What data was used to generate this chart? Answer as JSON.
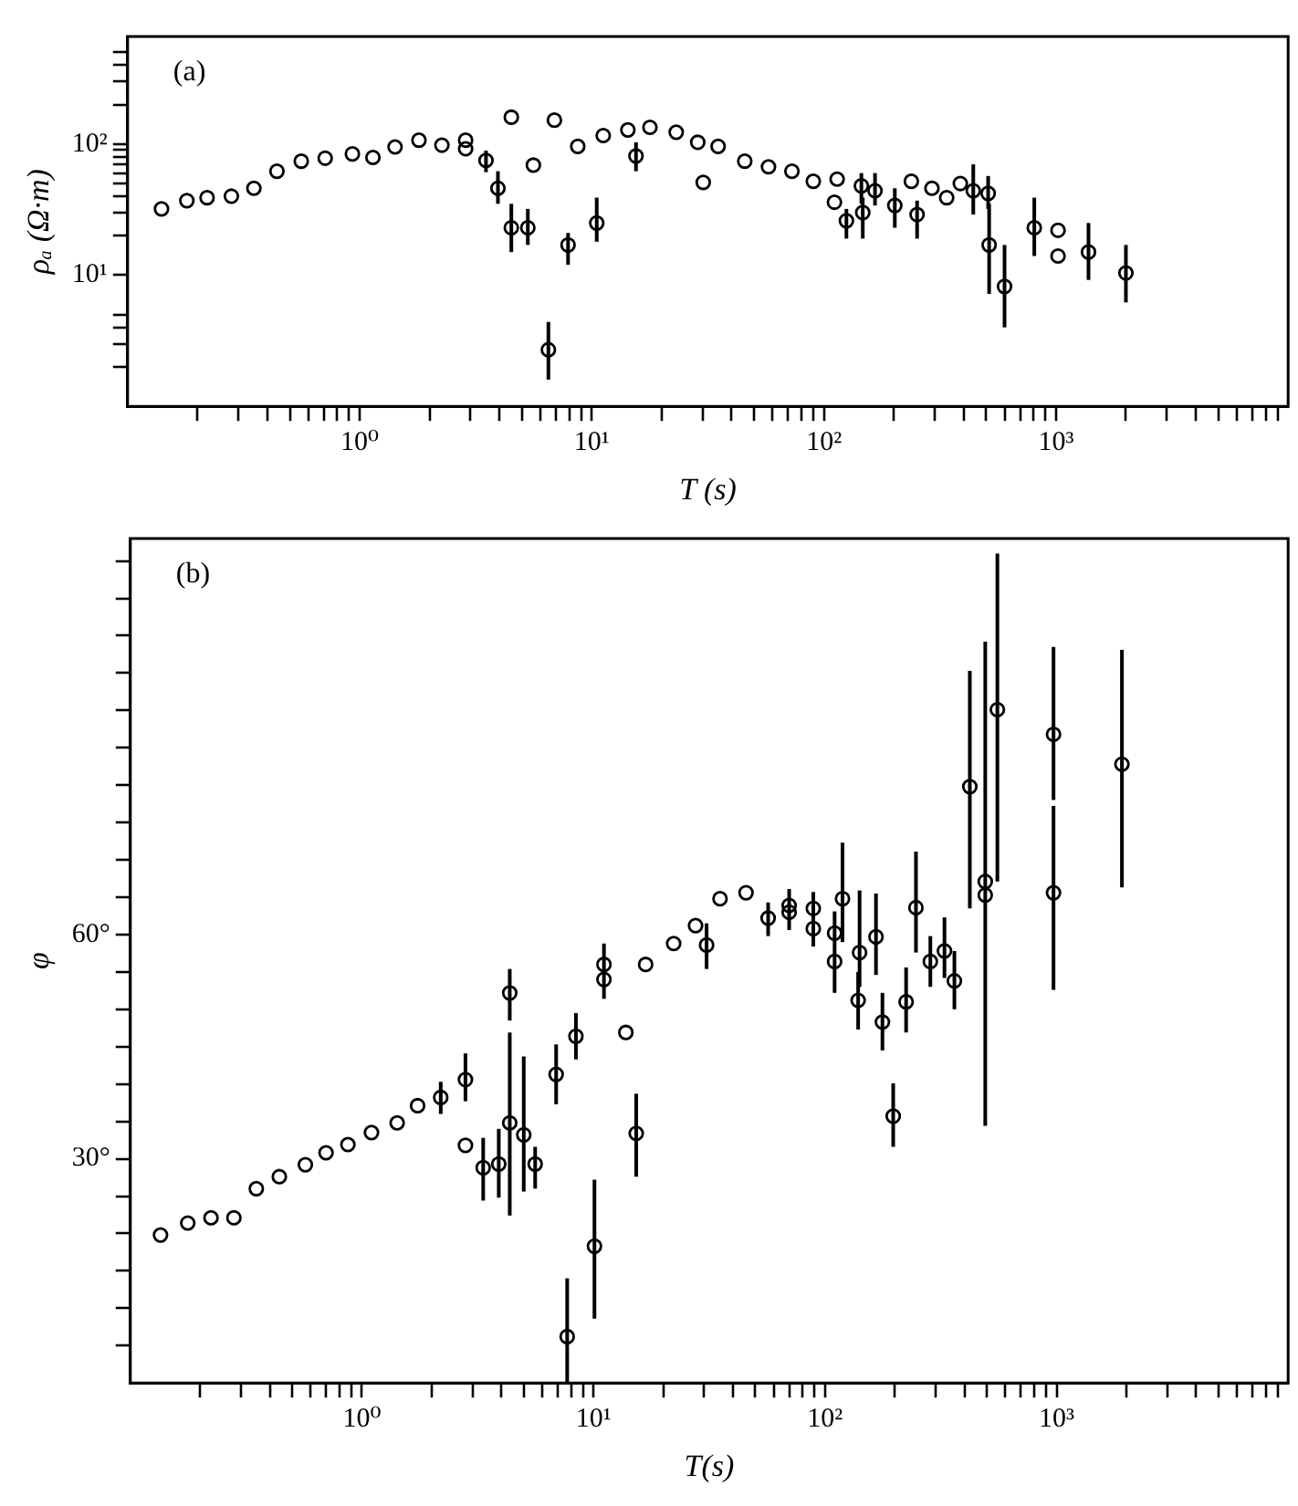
{
  "chart_data": [
    {
      "type": "scatter",
      "annotations": [
        "(a)"
      ],
      "xlabel": "T (s)",
      "ylabel": "ρₐ (Ω·m)",
      "log": "xy",
      "grid": false,
      "marker": "circle",
      "x": [
        0.14,
        0.18,
        0.22,
        0.28,
        0.35,
        0.44,
        0.56,
        0.71,
        0.93,
        1.14,
        1.42,
        1.8,
        2.26,
        2.86,
        2.86,
        3.5,
        3.94,
        4.5,
        4.5,
        5.3,
        5.6,
        6.5,
        6.9,
        7.9,
        8.7,
        10.5,
        11.2,
        14.3,
        15.5,
        17.8,
        23.1,
        28.6,
        30.2,
        35,
        45.6,
        57.7,
        72.8,
        90,
        111,
        114,
        125,
        145,
        147,
        166,
        202,
        238,
        252,
        292,
        338,
        387,
        440,
        510,
        515,
        600,
        806,
        1020,
        1020,
        1380,
        2000
      ],
      "values": [
        32,
        37,
        39,
        40,
        46,
        62,
        74,
        78,
        84,
        79,
        95,
        107,
        98,
        107,
        92,
        75,
        46,
        160,
        23,
        23,
        69,
        2.7,
        152,
        17,
        96,
        25,
        116,
        128,
        81,
        134,
        123,
        103,
        51,
        96,
        74,
        67,
        62,
        52,
        36,
        54,
        26,
        48,
        30,
        44,
        34,
        52,
        29,
        46,
        39,
        50,
        44,
        42,
        17,
        8.2,
        23,
        22,
        14,
        15,
        10.4
      ],
      "errors": [
        null,
        null,
        null,
        null,
        null,
        null,
        null,
        null,
        null,
        null,
        null,
        null,
        null,
        null,
        null,
        [
          61,
          89
        ],
        [
          35,
          62
        ],
        null,
        [
          15,
          35
        ],
        [
          17,
          32
        ],
        null,
        [
          1.6,
          4.4
        ],
        null,
        [
          12,
          21
        ],
        null,
        [
          18,
          39
        ],
        null,
        null,
        [
          62,
          103
        ],
        null,
        null,
        null,
        null,
        null,
        null,
        null,
        null,
        null,
        null,
        null,
        [
          19,
          32
        ],
        [
          35,
          60
        ],
        [
          19,
          39
        ],
        [
          34,
          60
        ],
        [
          23,
          46
        ],
        null,
        [
          19,
          37
        ],
        null,
        null,
        null,
        [
          29,
          70
        ],
        [
          32,
          57
        ],
        [
          7.2,
          35
        ],
        [
          4,
          17
        ],
        [
          14,
          39
        ],
        null,
        null,
        [
          9.2,
          25
        ],
        [
          6.2,
          17
        ]
      ],
      "xlim": [
        0.1,
        10000
      ],
      "ylim": [
        1,
        660
      ],
      "xticks": [
        {
          "value": 0.2,
          "label": null
        },
        {
          "value": 0.3,
          "label": null
        },
        {
          "value": 0.4,
          "label": null
        },
        {
          "value": 0.5,
          "label": null
        },
        {
          "value": 0.6,
          "label": null
        },
        {
          "value": 0.7,
          "label": null
        },
        {
          "value": 0.8,
          "label": null
        },
        {
          "value": 0.9,
          "label": null
        },
        {
          "value": 1,
          "label": "10⁰"
        },
        {
          "value": 2,
          "label": null
        },
        {
          "value": 3,
          "label": null
        },
        {
          "value": 4,
          "label": null
        },
        {
          "value": 5,
          "label": null
        },
        {
          "value": 6,
          "label": null
        },
        {
          "value": 7,
          "label": null
        },
        {
          "value": 8,
          "label": null
        },
        {
          "value": 9,
          "label": null
        },
        {
          "value": 10,
          "label": "10¹"
        },
        {
          "value": 20,
          "label": null
        },
        {
          "value": 30,
          "label": null
        },
        {
          "value": 40,
          "label": null
        },
        {
          "value": 50,
          "label": null
        },
        {
          "value": 60,
          "label": null
        },
        {
          "value": 70,
          "label": null
        },
        {
          "value": 80,
          "label": null
        },
        {
          "value": 90,
          "label": null
        },
        {
          "value": 100,
          "label": "10²"
        },
        {
          "value": 200,
          "label": null
        },
        {
          "value": 300,
          "label": null
        },
        {
          "value": 400,
          "label": null
        },
        {
          "value": 500,
          "label": null
        },
        {
          "value": 600,
          "label": null
        },
        {
          "value": 700,
          "label": null
        },
        {
          "value": 800,
          "label": null
        },
        {
          "value": 900,
          "label": null
        },
        {
          "value": 1000,
          "label": "10³"
        },
        {
          "value": 2000,
          "label": null
        },
        {
          "value": 3000,
          "label": null
        },
        {
          "value": 4000,
          "label": null
        },
        {
          "value": 5000,
          "label": null
        },
        {
          "value": 6000,
          "label": null
        },
        {
          "value": 7000,
          "label": null
        },
        {
          "value": 8000,
          "label": null
        },
        {
          "value": 9000,
          "label": null
        }
      ],
      "yticks": [
        {
          "value": 2,
          "label": null
        },
        {
          "value": 3,
          "label": null
        },
        {
          "value": 4,
          "label": null
        },
        {
          "value": 5,
          "label": null
        },
        {
          "value": 10,
          "label": "10¹"
        },
        {
          "value": 20,
          "label": null
        },
        {
          "value": 30,
          "label": null
        },
        {
          "value": 40,
          "label": null
        },
        {
          "value": 50,
          "label": null
        },
        {
          "value": 60,
          "label": null
        },
        {
          "value": 70,
          "label": null
        },
        {
          "value": 80,
          "label": null
        },
        {
          "value": 90,
          "label": null
        },
        {
          "value": 100,
          "label": "10²"
        },
        {
          "value": 200,
          "label": null
        },
        {
          "value": 300,
          "label": null
        },
        {
          "value": 400,
          "label": null
        },
        {
          "value": 500,
          "label": null
        }
      ]
    },
    {
      "type": "scatter",
      "annotations": [
        "(b)"
      ],
      "xlabel": "T(s)",
      "ylabel": "φ",
      "log": "x",
      "grid": false,
      "marker": "circle",
      "x": [
        0.135,
        0.177,
        0.223,
        0.28,
        0.35,
        0.44,
        0.57,
        0.7,
        0.87,
        1.1,
        1.42,
        1.74,
        2.19,
        2.8,
        2.8,
        3.34,
        3.9,
        4.35,
        4.35,
        5,
        5.6,
        6.9,
        7.7,
        8.4,
        10.1,
        11.1,
        11.1,
        13.8,
        15.3,
        16.8,
        22.2,
        27.6,
        30.8,
        35.2,
        45.6,
        56.8,
        70,
        70,
        89,
        89,
        110,
        110,
        119,
        141,
        139,
        166,
        177,
        197,
        224,
        247,
        285,
        328,
        362,
        422,
        492,
        492,
        555,
        970,
        970,
        1915
      ],
      "values": [
        19.8,
        21.4,
        22.1,
        22.1,
        26,
        27.6,
        29.2,
        30.8,
        31.9,
        33.5,
        34.8,
        37.1,
        38.2,
        40.6,
        31.8,
        28.8,
        29.3,
        52.2,
        34.8,
        33.2,
        29.3,
        41.3,
        6.2,
        46.4,
        18.3,
        56,
        54,
        46.9,
        33.4,
        56,
        58.8,
        61.2,
        58.6,
        64.8,
        65.6,
        62.2,
        63.9,
        63,
        63.5,
        60.8,
        60.2,
        56.4,
        64.8,
        57.6,
        51.2,
        59.7,
        48.3,
        35.7,
        51,
        63.6,
        56.4,
        57.8,
        53.8,
        79.8,
        67.1,
        65.3,
        90.1,
        86.8,
        65.6,
        82.8
      ],
      "errors": [
        null,
        null,
        null,
        null,
        null,
        null,
        null,
        null,
        null,
        null,
        null,
        null,
        [
          36,
          40.3
        ],
        [
          37.7,
          44.1
        ],
        null,
        [
          24.4,
          32.8
        ],
        [
          24.8,
          34
        ],
        [
          48.5,
          55.4
        ],
        [
          22.4,
          46.9
        ],
        [
          25.6,
          43.7
        ],
        [
          26,
          31.6
        ],
        [
          37.3,
          45.3
        ],
        [
          0,
          14
        ],
        [
          43.3,
          49.5
        ],
        [
          8.6,
          27.2
        ],
        [
          51.4,
          58.8
        ],
        null,
        null,
        [
          27.6,
          38.7
        ],
        null,
        null,
        null,
        [
          55.4,
          61.5
        ],
        null,
        null,
        [
          59.8,
          64.3
        ],
        [
          60.6,
          66.1
        ],
        null,
        [
          58.4,
          65.7
        ],
        null,
        null,
        [
          52.2,
          63.1
        ],
        [
          59,
          72.3
        ],
        [
          53,
          65.9
        ],
        [
          47.3,
          55
        ],
        [
          54.6,
          65.5
        ],
        [
          44.5,
          52.2
        ],
        [
          31.6,
          40.1
        ],
        [
          46.9,
          55.6
        ],
        [
          57.6,
          71.1
        ],
        [
          53,
          59.8
        ],
        [
          54.2,
          62.3
        ],
        [
          50,
          57.8
        ],
        [
          63.5,
          95.3
        ],
        [
          34.4,
          99.2
        ],
        null,
        [
          67.1,
          111
        ],
        [
          78,
          98.5
        ],
        [
          52.6,
          77.2
        ],
        [
          66.3,
          98.1
        ]
      ],
      "xlim": [
        0.1,
        10000
      ],
      "ylim": [
        0,
        113
      ],
      "xticks": [
        {
          "value": 0.2,
          "label": null
        },
        {
          "value": 0.3,
          "label": null
        },
        {
          "value": 0.4,
          "label": null
        },
        {
          "value": 0.5,
          "label": null
        },
        {
          "value": 0.6,
          "label": null
        },
        {
          "value": 0.7,
          "label": null
        },
        {
          "value": 0.8,
          "label": null
        },
        {
          "value": 0.9,
          "label": null
        },
        {
          "value": 1,
          "label": "10⁰"
        },
        {
          "value": 2,
          "label": null
        },
        {
          "value": 3,
          "label": null
        },
        {
          "value": 4,
          "label": null
        },
        {
          "value": 5,
          "label": null
        },
        {
          "value": 6,
          "label": null
        },
        {
          "value": 7,
          "label": null
        },
        {
          "value": 8,
          "label": null
        },
        {
          "value": 9,
          "label": null
        },
        {
          "value": 10,
          "label": "10¹"
        },
        {
          "value": 20,
          "label": null
        },
        {
          "value": 30,
          "label": null
        },
        {
          "value": 40,
          "label": null
        },
        {
          "value": 50,
          "label": null
        },
        {
          "value": 60,
          "label": null
        },
        {
          "value": 70,
          "label": null
        },
        {
          "value": 80,
          "label": null
        },
        {
          "value": 90,
          "label": null
        },
        {
          "value": 100,
          "label": "10²"
        },
        {
          "value": 200,
          "label": null
        },
        {
          "value": 300,
          "label": null
        },
        {
          "value": 400,
          "label": null
        },
        {
          "value": 500,
          "label": null
        },
        {
          "value": 600,
          "label": null
        },
        {
          "value": 700,
          "label": null
        },
        {
          "value": 800,
          "label": null
        },
        {
          "value": 900,
          "label": null
        },
        {
          "value": 1000,
          "label": "10³"
        },
        {
          "value": 2000,
          "label": null
        },
        {
          "value": 3000,
          "label": null
        },
        {
          "value": 4000,
          "label": null
        },
        {
          "value": 5000,
          "label": null
        },
        {
          "value": 6000,
          "label": null
        },
        {
          "value": 7000,
          "label": null
        },
        {
          "value": 8000,
          "label": null
        },
        {
          "value": 9000,
          "label": null
        }
      ],
      "yticks": [
        {
          "value": 5,
          "label": null
        },
        {
          "value": 10,
          "label": null
        },
        {
          "value": 15,
          "label": null
        },
        {
          "value": 20,
          "label": null
        },
        {
          "value": 25,
          "label": null
        },
        {
          "value": 30,
          "label": "30°"
        },
        {
          "value": 35,
          "label": null
        },
        {
          "value": 40,
          "label": null
        },
        {
          "value": 45,
          "label": null
        },
        {
          "value": 50,
          "label": null
        },
        {
          "value": 55,
          "label": null
        },
        {
          "value": 60,
          "label": "60°"
        },
        {
          "value": 65,
          "label": null
        },
        {
          "value": 70,
          "label": null
        },
        {
          "value": 75,
          "label": null
        },
        {
          "value": 80,
          "label": null
        },
        {
          "value": 85,
          "label": null
        },
        {
          "value": 90,
          "label": null
        },
        {
          "value": 95,
          "label": null
        },
        {
          "value": 100,
          "label": null
        },
        {
          "value": 105,
          "label": null
        },
        {
          "value": 110,
          "label": null
        }
      ]
    }
  ]
}
